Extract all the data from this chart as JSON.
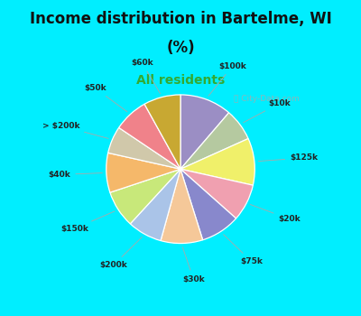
{
  "title_line1": "Income distribution in Bartelme, WI",
  "title_line2": "(%)",
  "subtitle": "All residents",
  "bg_color": "#00eeff",
  "chart_bg_color": "#dff5ec",
  "watermark": "City-Data.com",
  "segments": [
    {
      "label": "$100k",
      "value": 10.5,
      "color": "#9b8ec4"
    },
    {
      "label": "$10k",
      "value": 6.5,
      "color": "#b5c9a0"
    },
    {
      "label": "$125k",
      "value": 9.5,
      "color": "#f0f06a"
    },
    {
      "label": "$20k",
      "value": 7.5,
      "color": "#f0a0b0"
    },
    {
      "label": "$75k",
      "value": 8.0,
      "color": "#8888cc"
    },
    {
      "label": "$30k",
      "value": 8.5,
      "color": "#f5c899"
    },
    {
      "label": "$200k",
      "value": 7.0,
      "color": "#aac4e8"
    },
    {
      "label": "$150k",
      "value": 7.5,
      "color": "#c8e87a"
    },
    {
      "label": "$40k",
      "value": 8.0,
      "color": "#f5b86a"
    },
    {
      "label": "> $200k",
      "value": 5.5,
      "color": "#d0c8aa"
    },
    {
      "label": "$50k",
      "value": 7.0,
      "color": "#f0828a"
    },
    {
      "label": "$60k",
      "value": 7.5,
      "color": "#c8a832"
    }
  ]
}
